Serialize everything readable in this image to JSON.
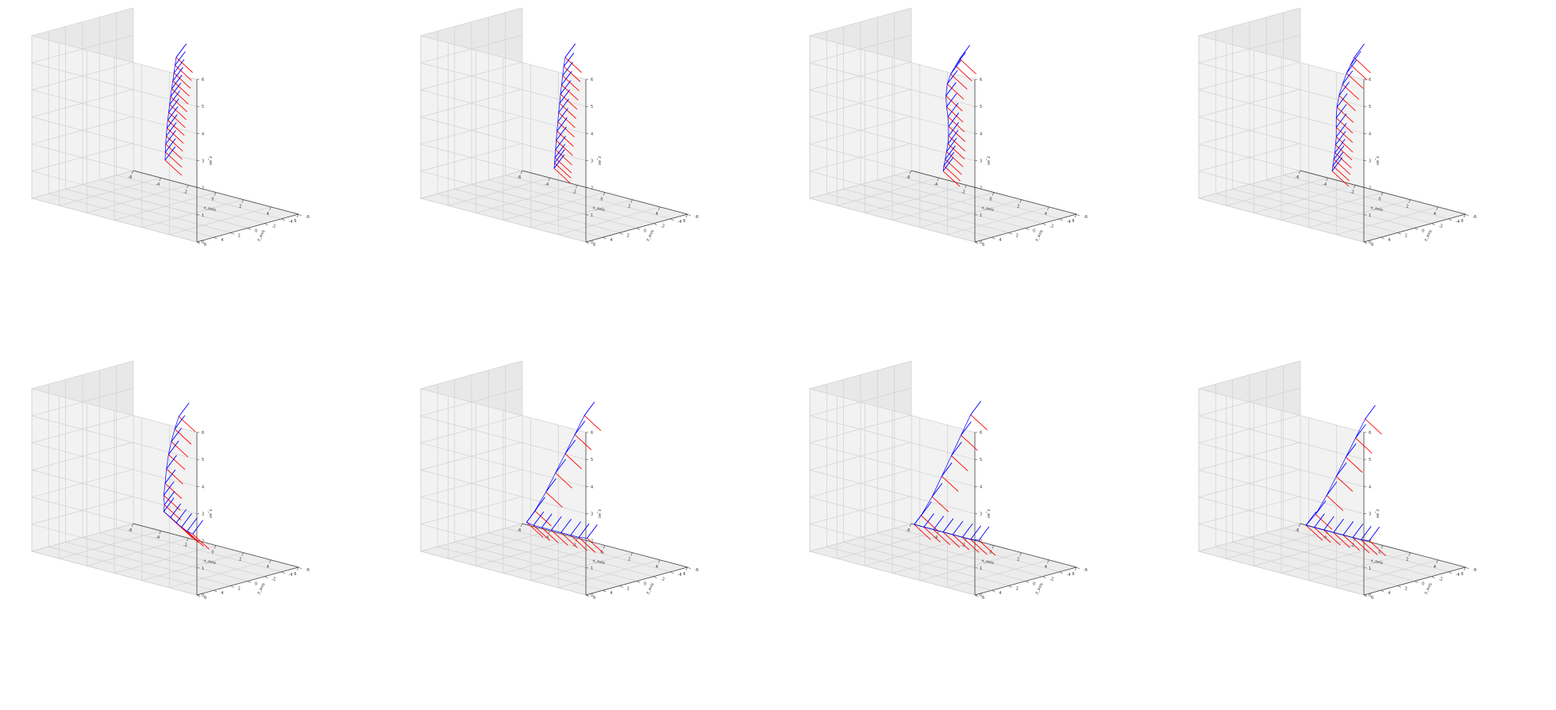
{
  "figure": {
    "panel_count": 8,
    "layout": "2x4 grid",
    "colors": {
      "pane_face": "#f2f2f2",
      "pane_side": "#e8e8e8",
      "grid": "#d0d0d0",
      "edge": "#444444",
      "series_a": "#ff0000",
      "series_b": "#0000ff"
    }
  },
  "axes": {
    "xlabel": "x_axis",
    "ylabel": "y_axis",
    "zlabel": "z_ax",
    "xticks": [
      "-6",
      "-4",
      "-2",
      "0",
      "2",
      "4",
      "6"
    ],
    "yticks": [
      "-6",
      "-4",
      "-2",
      "0",
      "2",
      "4",
      "6"
    ],
    "zticks": [
      "0",
      "1",
      "2",
      "3",
      "4",
      "5",
      "6"
    ],
    "xlim": [
      -6,
      6
    ],
    "ylim": [
      -6,
      6
    ],
    "zlim": [
      0,
      6
    ],
    "grid": true
  },
  "chart_data": [
    {
      "type": "quiver3d",
      "series": [
        {
          "color": "#ff0000",
          "direction": [
            1.2,
            0,
            -0.4
          ]
        },
        {
          "color": "#0000ff",
          "direction": [
            0,
            1.2,
            0.4
          ]
        }
      ],
      "points": [
        [
          0.8,
          0,
          5.6
        ],
        [
          0.72,
          0,
          5.3
        ],
        [
          0.64,
          0,
          5.0
        ],
        [
          0.56,
          0,
          4.7
        ],
        [
          0.48,
          0,
          4.4
        ],
        [
          0.4,
          0,
          4.1
        ],
        [
          0.33,
          0,
          3.8
        ],
        [
          0.26,
          0,
          3.5
        ],
        [
          0.19,
          0,
          3.2
        ],
        [
          0.13,
          0,
          2.9
        ],
        [
          0.08,
          0,
          2.6
        ],
        [
          0.04,
          0,
          2.3
        ],
        [
          0.02,
          0,
          2.0
        ],
        [
          0,
          0,
          1.7
        ]
      ]
    },
    {
      "type": "quiver3d",
      "series": [
        {
          "color": "#ff0000",
          "direction": [
            1.2,
            0,
            -0.4
          ]
        },
        {
          "color": "#0000ff",
          "direction": [
            0,
            1.2,
            0.4
          ]
        }
      ],
      "points": [
        [
          0.8,
          0,
          5.6
        ],
        [
          0.7,
          0,
          5.25
        ],
        [
          0.62,
          0,
          4.9
        ],
        [
          0.54,
          0,
          4.55
        ],
        [
          0.47,
          0,
          4.2
        ],
        [
          0.4,
          0,
          3.85
        ],
        [
          0.33,
          0,
          3.5
        ],
        [
          0.27,
          0,
          3.15
        ],
        [
          0.21,
          0,
          2.8
        ],
        [
          0.15,
          0,
          2.45
        ],
        [
          0.1,
          0,
          2.1
        ],
        [
          0.06,
          0,
          1.8
        ],
        [
          0.03,
          0,
          1.6
        ],
        [
          0,
          0,
          1.4
        ]
      ]
    },
    {
      "type": "quiver3d",
      "series": [
        {
          "color": "#ff0000",
          "direction": [
            1.2,
            0,
            -0.4
          ]
        },
        {
          "color": "#0000ff",
          "direction": [
            0,
            1.2,
            0.4
          ]
        }
      ],
      "points": [
        [
          1.2,
          0,
          5.6
        ],
        [
          0.9,
          0,
          5.3
        ],
        [
          0.55,
          0,
          4.95
        ],
        [
          0.3,
          0,
          4.55
        ],
        [
          0.2,
          0,
          4.1
        ],
        [
          0.25,
          0,
          3.7
        ],
        [
          0.35,
          0,
          3.35
        ],
        [
          0.4,
          0,
          3.0
        ],
        [
          0.4,
          0,
          2.65
        ],
        [
          0.35,
          0,
          2.35
        ],
        [
          0.25,
          0,
          2.05
        ],
        [
          0.15,
          0,
          1.75
        ],
        [
          0.05,
          0,
          1.5
        ],
        [
          0,
          0,
          1.3
        ]
      ]
    },
    {
      "type": "quiver3d",
      "series": [
        {
          "color": "#ff0000",
          "direction": [
            1.2,
            0,
            -0.4
          ]
        },
        {
          "color": "#0000ff",
          "direction": [
            0,
            1.2,
            0.4
          ]
        }
      ],
      "points": [
        [
          1.6,
          0,
          5.7
        ],
        [
          1.35,
          0,
          5.4
        ],
        [
          1.05,
          0,
          5.05
        ],
        [
          0.75,
          0,
          4.6
        ],
        [
          0.5,
          0,
          4.15
        ],
        [
          0.35,
          0,
          3.7
        ],
        [
          0.3,
          0,
          3.3
        ],
        [
          0.3,
          0,
          2.95
        ],
        [
          0.3,
          0,
          2.6
        ],
        [
          0.25,
          0,
          2.3
        ],
        [
          0.2,
          0,
          2.0
        ],
        [
          0.12,
          0,
          1.75
        ],
        [
          0.05,
          0,
          1.5
        ],
        [
          0,
          0,
          1.3
        ]
      ]
    },
    {
      "type": "quiver3d",
      "series": [
        {
          "color": "#ff0000",
          "direction": [
            1.2,
            0,
            -0.4
          ]
        },
        {
          "color": "#0000ff",
          "direction": [
            0,
            1.2,
            0.4
          ]
        }
      ],
      "points": [
        [
          1.0,
          0,
          5.4
        ],
        [
          0.7,
          0,
          4.9
        ],
        [
          0.45,
          0,
          4.4
        ],
        [
          0.25,
          0,
          3.9
        ],
        [
          0.1,
          0,
          3.35
        ],
        [
          0,
          0,
          2.8
        ],
        [
          -0.1,
          0,
          2.35
        ],
        [
          -0.05,
          0,
          2.0
        ],
        [
          -0.1,
          0,
          1.75
        ],
        [
          0.4,
          0,
          1.6
        ],
        [
          0.8,
          0,
          1.45
        ],
        [
          1.2,
          0,
          1.35
        ],
        [
          1.6,
          0,
          1.25
        ],
        [
          2.0,
          0,
          1.2
        ]
      ]
    },
    {
      "type": "quiver3d",
      "series": [
        {
          "color": "#ff0000",
          "direction": [
            1.2,
            0,
            -0.4
          ]
        },
        {
          "color": "#0000ff",
          "direction": [
            0,
            1.2,
            0.4
          ]
        }
      ],
      "points": [
        [
          2.2,
          0,
          5.6
        ],
        [
          1.5,
          0,
          4.8
        ],
        [
          0.8,
          0,
          4.0
        ],
        [
          0.1,
          0,
          3.2
        ],
        [
          -0.6,
          0,
          2.4
        ],
        [
          -1.4,
          0,
          1.6
        ],
        [
          -2.0,
          0,
          1.1
        ],
        [
          -1.5,
          0,
          1.05
        ],
        [
          -0.9,
          0,
          1.05
        ],
        [
          -0.2,
          0,
          1.05
        ],
        [
          0.5,
          0,
          1.05
        ],
        [
          1.2,
          0,
          1.05
        ],
        [
          1.8,
          0,
          1.05
        ],
        [
          2.4,
          0,
          1.1
        ]
      ]
    },
    {
      "type": "quiver3d",
      "series": [
        {
          "color": "#ff0000",
          "direction": [
            1.2,
            0,
            -0.4
          ]
        },
        {
          "color": "#0000ff",
          "direction": [
            0,
            1.2,
            0.4
          ]
        }
      ],
      "points": [
        [
          2.0,
          0,
          5.6
        ],
        [
          1.3,
          0,
          4.75
        ],
        [
          0.6,
          0,
          3.9
        ],
        [
          -0.1,
          0,
          3.05
        ],
        [
          -0.8,
          0,
          2.2
        ],
        [
          -1.6,
          0,
          1.4
        ],
        [
          -2.1,
          0,
          1.0
        ],
        [
          -1.4,
          0,
          1.0
        ],
        [
          -0.7,
          0,
          1.0
        ],
        [
          0.0,
          0,
          1.0
        ],
        [
          0.7,
          0,
          1.0
        ],
        [
          1.4,
          0,
          1.0
        ],
        [
          2.0,
          0,
          1.0
        ],
        [
          2.6,
          0,
          1.05
        ]
      ]
    },
    {
      "type": "quiver3d",
      "series": [
        {
          "color": "#ff0000",
          "direction": [
            1.2,
            0,
            -0.4
          ]
        },
        {
          "color": "#0000ff",
          "direction": [
            0,
            1.2,
            0.4
          ]
        }
      ],
      "points": [
        [
          2.4,
          0,
          5.5
        ],
        [
          1.7,
          0,
          4.7
        ],
        [
          1.0,
          0,
          3.9
        ],
        [
          0.3,
          0,
          3.1
        ],
        [
          -0.4,
          0,
          2.3
        ],
        [
          -1.2,
          0,
          1.5
        ],
        [
          -1.9,
          0,
          1.0
        ],
        [
          -1.3,
          0,
          1.0
        ],
        [
          -0.6,
          0,
          1.0
        ],
        [
          0.1,
          0,
          1.0
        ],
        [
          0.8,
          0,
          1.0
        ],
        [
          1.5,
          0,
          1.0
        ],
        [
          2.1,
          0,
          1.0
        ],
        [
          2.7,
          0,
          1.05
        ]
      ]
    }
  ]
}
